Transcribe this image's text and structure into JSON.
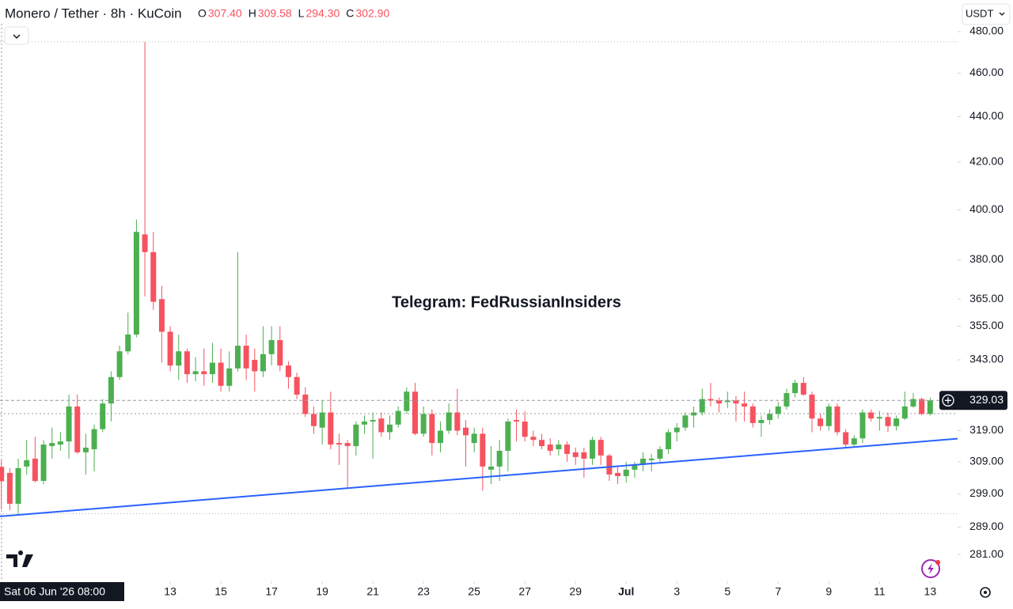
{
  "chart_data": {
    "type": "candlestick",
    "title": "Monero / Tether · 8h · KuCoin",
    "currency": "USDT",
    "watermark": "Telegram: FedRussianInsiders",
    "crosshair": {
      "label": "Sat 06 Jun '26 08:00",
      "ohlc_keys": [
        "O",
        "H",
        "L",
        "C"
      ],
      "value_labels": [
        "307.40",
        "309.58",
        "294.30",
        "302.90"
      ]
    },
    "last_price_label": "329.03",
    "up_color": "#4caf50",
    "down_color": "#f7525f",
    "log_scale": true,
    "open": [
      307.4,
      305.5,
      296,
      307.5,
      310,
      303,
      314,
      314.5,
      315.5,
      327,
      312,
      313,
      319.5,
      328,
      337,
      346,
      352,
      390,
      383,
      365,
      353,
      341,
      346,
      338,
      339,
      338,
      342,
      334,
      340,
      348,
      343,
      339,
      345,
      350,
      341,
      337,
      331,
      324.5,
      320,
      325,
      315,
      315,
      314,
      321,
      322,
      323,
      318.5,
      321,
      325.5,
      332,
      318,
      324.5,
      315,
      319,
      325,
      320,
      315,
      318,
      306.5,
      307.5,
      312.5,
      322.5,
      322,
      317,
      316,
      314.5,
      313,
      314.5,
      312,
      312,
      310,
      316,
      311,
      305.5,
      304.5,
      306.5,
      308,
      309.5,
      310,
      313,
      318.5,
      320,
      324,
      325,
      329.5,
      329,
      328.5,
      329,
      328,
      327,
      321.5,
      322.5,
      324.5,
      327,
      331.5,
      335,
      331,
      323,
      320.5,
      327,
      318.5,
      314.5,
      316.5,
      325,
      323,
      323.5,
      320.5,
      323,
      327,
      329.5,
      324.5
    ],
    "high": [
      309.58,
      307,
      310,
      316,
      317,
      316,
      320,
      318.5,
      331,
      331,
      318,
      321,
      329.5,
      339,
      348,
      360,
      396,
      475,
      391,
      370,
      355,
      352,
      347,
      344,
      347,
      349,
      347,
      346,
      383,
      352,
      347,
      355,
      355,
      355,
      342.5,
      338.5,
      333.5,
      327,
      329,
      332,
      318,
      316,
      322,
      324,
      325,
      325,
      324,
      327,
      333.5,
      335,
      327,
      326,
      322,
      328,
      333,
      322.5,
      320,
      320,
      314,
      316,
      323,
      326,
      325.5,
      319,
      318,
      316.5,
      316,
      315.5,
      313.5,
      313.5,
      317,
      317,
      311.5,
      307.5,
      309,
      309,
      312,
      311.5,
      314,
      319.5,
      321.5,
      325,
      327,
      333,
      335,
      330,
      332,
      330.5,
      332,
      328,
      324,
      326,
      328.5,
      333,
      336,
      337,
      332,
      324.5,
      328,
      328,
      319.5,
      317.5,
      326,
      326,
      325.5,
      325,
      324,
      332,
      331.5,
      330,
      330
    ],
    "low": [
      294.3,
      294,
      293,
      305,
      302.5,
      302,
      310,
      312.5,
      310,
      311.5,
      305,
      306,
      318.5,
      322,
      336,
      345,
      351,
      366,
      361,
      342,
      339,
      336,
      335,
      335.5,
      334,
      335,
      332,
      332,
      339,
      336,
      332,
      337,
      341,
      339,
      333,
      329.5,
      323.5,
      318,
      314.5,
      313,
      308,
      301,
      311,
      318,
      310,
      317,
      316,
      320,
      324.5,
      317.5,
      317,
      311,
      312,
      318,
      317.5,
      307.5,
      312,
      300,
      302,
      303,
      306,
      315.5,
      315.5,
      314,
      313,
      311,
      311,
      309,
      308,
      304,
      308,
      308,
      303,
      302,
      302.5,
      304,
      306,
      306,
      309,
      311.5,
      315.5,
      319,
      320,
      324,
      327,
      325,
      326.5,
      322,
      322,
      320,
      317,
      321,
      323,
      326,
      330,
      330.5,
      318.5,
      319,
      319,
      317.5,
      313.5,
      313.5,
      315,
      322,
      319,
      318.5,
      319,
      322.5,
      326.5,
      324,
      324
    ],
    "close": [
      302.9,
      296,
      307,
      309.5,
      303,
      314.5,
      315,
      315.5,
      327,
      312,
      313.5,
      319.5,
      328,
      337,
      346,
      352,
      391,
      383,
      364,
      353,
      341,
      346,
      338,
      339,
      338,
      342,
      334,
      340,
      348,
      340,
      339,
      345,
      350,
      341,
      337,
      331,
      324.5,
      320.5,
      325,
      314.5,
      314.5,
      314,
      321,
      322,
      322.5,
      318.5,
      321,
      325.5,
      332,
      318,
      324.5,
      315,
      319,
      325,
      319,
      317.5,
      318,
      307.5,
      307.5,
      312.5,
      322,
      322,
      317,
      316,
      314,
      312.5,
      314.5,
      311.5,
      310.5,
      310,
      316,
      311,
      305,
      304.5,
      306.5,
      308,
      310,
      310,
      313,
      318.5,
      320,
      324,
      325,
      329.5,
      329,
      328,
      329,
      328,
      327,
      321.5,
      322.5,
      324.5,
      327,
      331.5,
      335,
      331,
      323,
      320.5,
      327,
      318.5,
      314.5,
      316.5,
      325,
      323,
      323.5,
      320.5,
      323,
      327,
      329.5,
      324.5,
      329.03
    ],
    "xlim": [
      -0.16,
      113.25
    ],
    "xticks": [
      {
        "value": 20,
        "label": "13"
      },
      {
        "value": 26,
        "label": "15"
      },
      {
        "value": 32,
        "label": "17"
      },
      {
        "value": 38,
        "label": "19"
      },
      {
        "value": 44,
        "label": "21"
      },
      {
        "value": 50,
        "label": "23"
      },
      {
        "value": 56,
        "label": "25"
      },
      {
        "value": 62,
        "label": "27"
      },
      {
        "value": 68,
        "label": "29"
      },
      {
        "value": 74,
        "label": "Jul"
      },
      {
        "value": 80,
        "label": "3"
      },
      {
        "value": 86,
        "label": "5"
      },
      {
        "value": 92,
        "label": "7"
      },
      {
        "value": 98,
        "label": "9"
      },
      {
        "value": 104,
        "label": "11"
      },
      {
        "value": 110,
        "label": "13"
      }
    ],
    "ylim": [
      273.4,
      483.9
    ],
    "yticks": [
      {
        "value": 480,
        "label": "480.00"
      },
      {
        "value": 460,
        "label": "460.00"
      },
      {
        "value": 440,
        "label": "440.00"
      },
      {
        "value": 420,
        "label": "420.00"
      },
      {
        "value": 400,
        "label": "400.00"
      },
      {
        "value": 380,
        "label": "380.00"
      },
      {
        "value": 365,
        "label": "365.00"
      },
      {
        "value": 355,
        "label": "355.00"
      },
      {
        "value": 343,
        "label": "343.00"
      },
      {
        "value": 319,
        "label": "319.00"
      },
      {
        "value": 309,
        "label": "309.00"
      },
      {
        "value": 299,
        "label": "299.00"
      },
      {
        "value": 289,
        "label": "289.00"
      },
      {
        "value": 281,
        "label": "281.00"
      }
    ],
    "trendline": {
      "color": "#2962ff",
      "x": [
        -0.16,
        113.25
      ],
      "y": [
        292.2,
        316.4
      ]
    }
  }
}
